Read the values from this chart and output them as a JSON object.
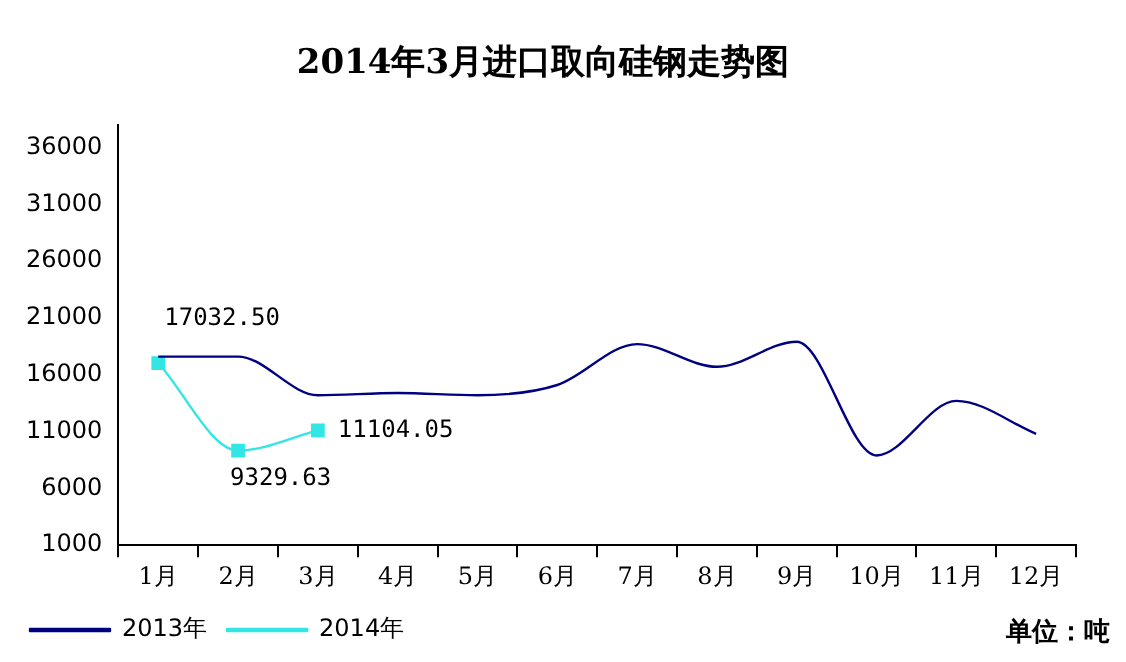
{
  "chart_data": {
    "type": "line",
    "title": "2014年3月进口取向硅钢走势图",
    "categories": [
      "1月",
      "2月",
      "3月",
      "4月",
      "5月",
      "6月",
      "7月",
      "8月",
      "9月",
      "10月",
      "11月",
      "12月"
    ],
    "series": [
      {
        "name": "2013年",
        "color": "#000080",
        "marker": "none",
        "values": [
          17600,
          17600,
          14200,
          14400,
          14200,
          15100,
          18700,
          16700,
          18900,
          8900,
          13700,
          10800
        ]
      },
      {
        "name": "2014年",
        "color": "#33e6e6",
        "marker": "square",
        "values": [
          17032.5,
          9329.63,
          11104.05,
          null,
          null,
          null,
          null,
          null,
          null,
          null,
          null,
          null
        ],
        "value_labels": [
          "17032.50",
          "9329.63",
          "11104.05",
          null,
          null,
          null,
          null,
          null,
          null,
          null,
          null,
          null
        ]
      }
    ],
    "ylim": [
      1000,
      38000
    ],
    "yticks": [
      1000,
      6000,
      11000,
      16000,
      21000,
      26000,
      31000,
      36000
    ],
    "grid": false,
    "legend": "bottom",
    "annotations": [
      "单位：吨"
    ]
  }
}
